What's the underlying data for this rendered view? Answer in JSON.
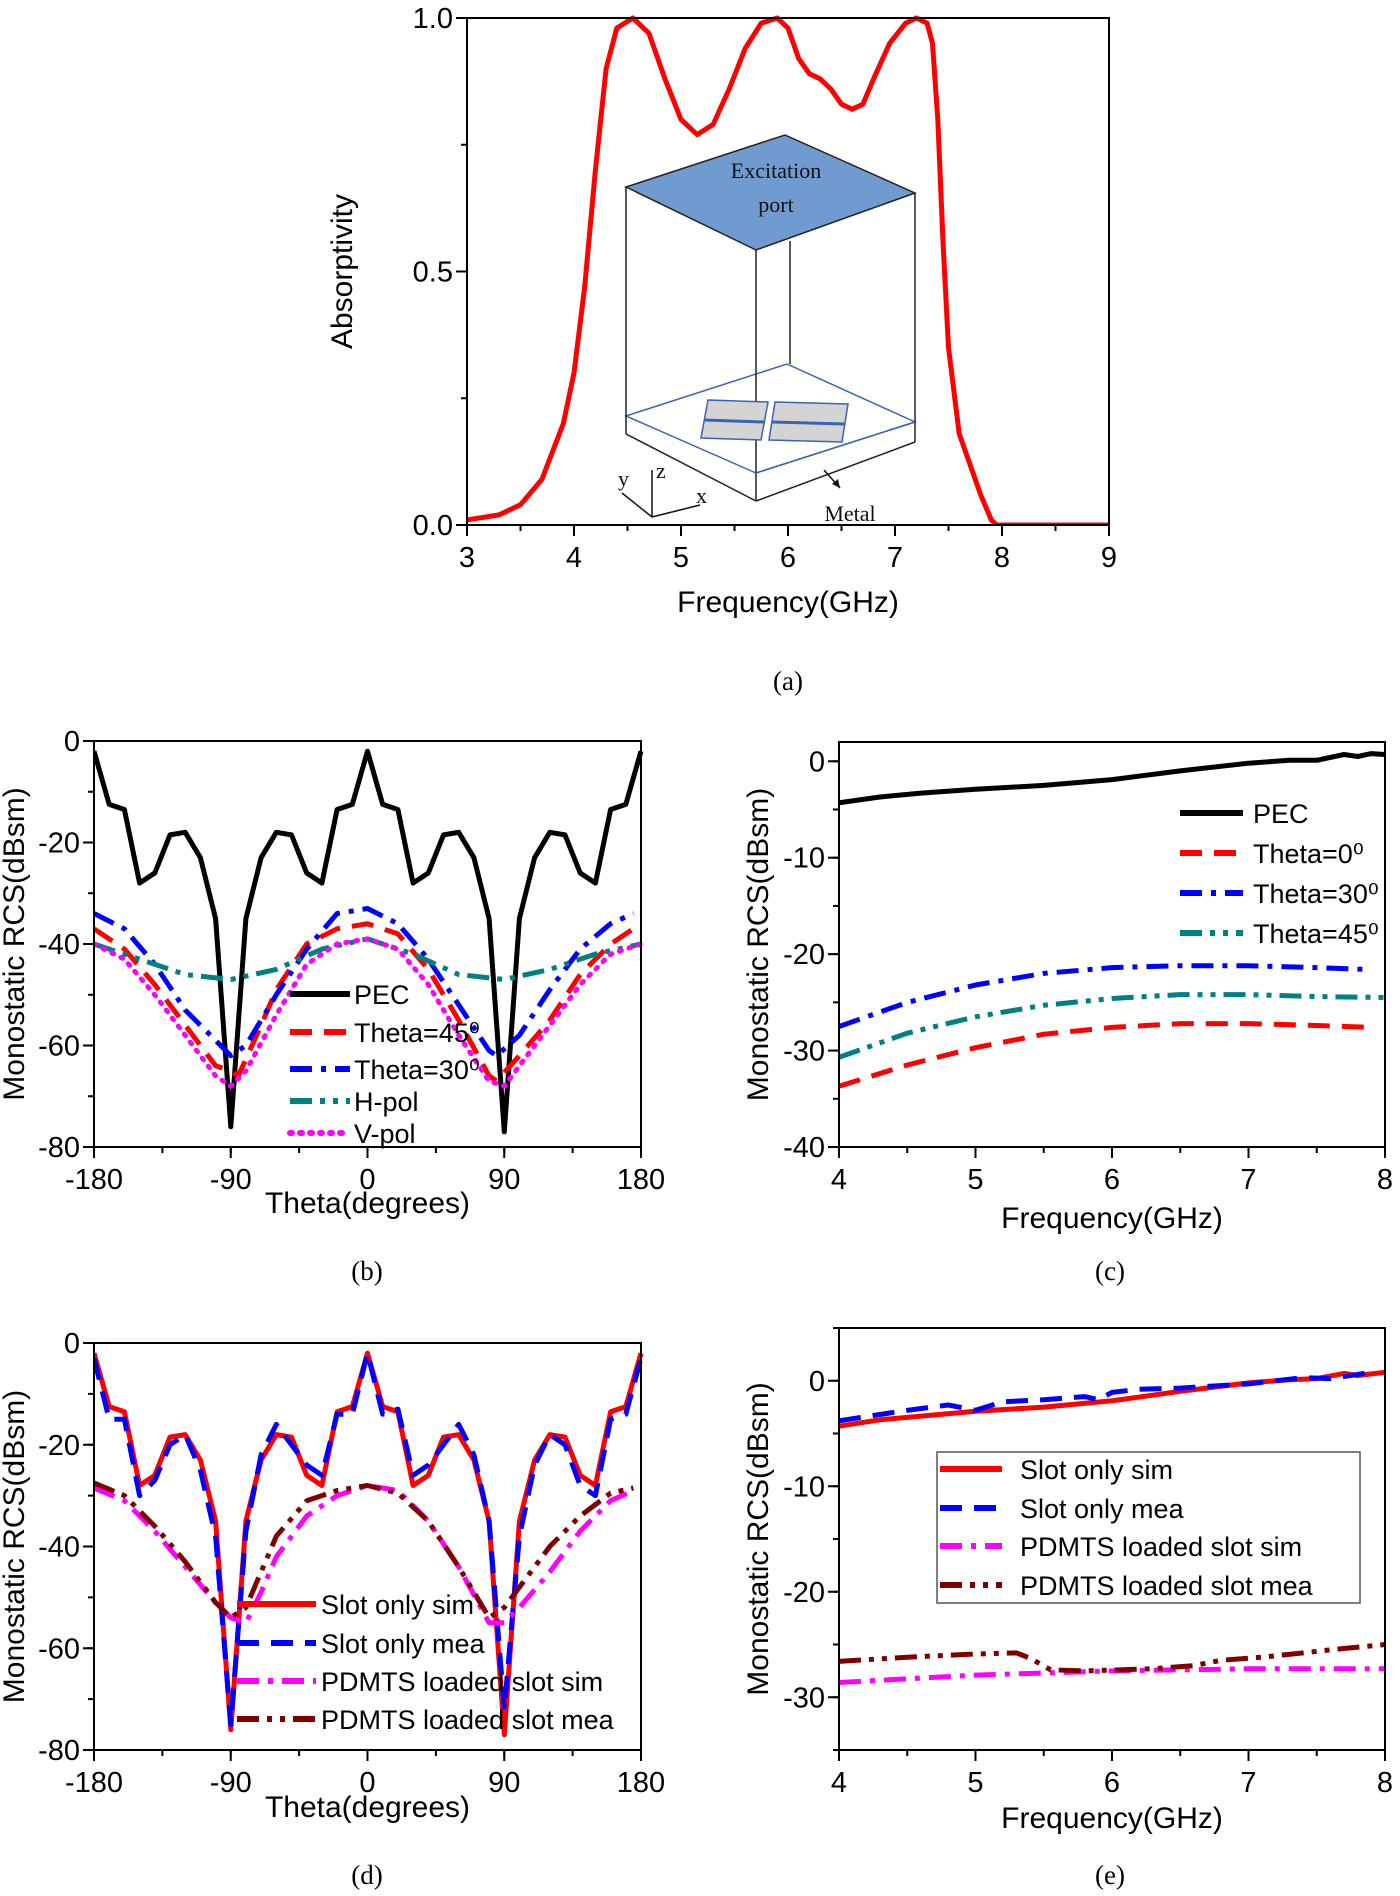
{
  "chart_data": [
    {
      "type": "line",
      "caption": "(a)",
      "xlabel": "Frequency(GHz)",
      "ylabel": "Absorptivity",
      "xlim": [
        3,
        9
      ],
      "ylim": [
        0,
        1
      ],
      "xticks": [
        "3",
        "4",
        "5",
        "6",
        "7",
        "8",
        "9"
      ],
      "yticks": [
        "0.0",
        "0.5",
        "1.0"
      ],
      "grid": false,
      "legend": "none",
      "inset": {
        "port_label_1": "Excitation",
        "port_label_2": "port",
        "metal_label": "Metal",
        "axis_x": "x",
        "axis_y": "y",
        "axis_z": "z"
      },
      "series": [
        {
          "color": "#ff0000",
          "style": "solid",
          "x": [
            3,
            3.3,
            3.5,
            3.7,
            3.9,
            4.0,
            4.1,
            4.2,
            4.3,
            4.4,
            4.55,
            4.7,
            4.85,
            5.0,
            5.15,
            5.3,
            5.45,
            5.6,
            5.75,
            5.9,
            6.0,
            6.1,
            6.2,
            6.3,
            6.4,
            6.5,
            6.6,
            6.7,
            6.8,
            6.95,
            7.1,
            7.2,
            7.3,
            7.35,
            7.4,
            7.45,
            7.5,
            7.6,
            7.7,
            7.8,
            7.9,
            7.95,
            9
          ],
          "y": [
            0.01,
            0.02,
            0.04,
            0.09,
            0.2,
            0.3,
            0.47,
            0.7,
            0.9,
            0.98,
            1.0,
            0.97,
            0.88,
            0.8,
            0.77,
            0.79,
            0.86,
            0.94,
            0.99,
            1.0,
            0.98,
            0.92,
            0.89,
            0.88,
            0.86,
            0.83,
            0.82,
            0.83,
            0.88,
            0.95,
            0.99,
            1.0,
            0.99,
            0.95,
            0.8,
            0.55,
            0.35,
            0.18,
            0.12,
            0.06,
            0.01,
            0.0,
            0.0
          ]
        }
      ]
    },
    {
      "type": "line",
      "caption": "(b)",
      "xlabel": "Theta(degrees)",
      "ylabel": "Monostatic RCS(dBsm)",
      "xlim": [
        -180,
        180
      ],
      "ylim": [
        -80,
        0
      ],
      "xticks": [
        "-180",
        "-90",
        "0",
        "90",
        "180"
      ],
      "yticks": [
        "-80",
        "-60",
        "-40",
        "-20",
        "0"
      ],
      "grid": false,
      "legend": "bottom-center",
      "series": [
        {
          "name": "PEC",
          "color": "#000000",
          "style": "solid",
          "x": [
            -180,
            -170,
            -160,
            -150,
            -140,
            -130,
            -120,
            -110,
            -100,
            -90,
            -80,
            -70,
            -60,
            -50,
            -40,
            -30,
            -20,
            -10,
            0,
            10,
            20,
            30,
            40,
            50,
            60,
            70,
            80,
            90,
            100,
            110,
            120,
            130,
            140,
            150,
            160,
            170,
            180
          ],
          "y": [
            -2,
            -12.5,
            -13.5,
            -28,
            -26,
            -18.5,
            -18,
            -23,
            -35,
            -76,
            -35,
            -23,
            -18,
            -18.5,
            -26,
            -28,
            -13.5,
            -12.5,
            -2,
            -12.5,
            -13.5,
            -28,
            -26,
            -18.5,
            -18,
            -23,
            -35,
            -77,
            -35,
            -23,
            -18,
            -18.5,
            -26,
            -28,
            -13.5,
            -12.5,
            -2
          ]
        },
        {
          "name": "Theta=45⁰",
          "color": "#ff0000",
          "style": "dash",
          "x": [
            -180,
            -160,
            -140,
            -120,
            -100,
            -90,
            -85,
            -70,
            -60,
            -40,
            -20,
            0,
            20,
            40,
            60,
            80,
            85,
            100,
            120,
            140,
            160,
            175
          ],
          "y": [
            -37,
            -41,
            -48,
            -56,
            -64,
            -65,
            -66,
            -56,
            -49,
            -40,
            -37,
            -36,
            -38,
            -45,
            -55,
            -66,
            -67,
            -62,
            -55,
            -46,
            -40,
            -37
          ]
        },
        {
          "name": "Theta=30⁰",
          "color": "#0000ff",
          "style": "dashdot",
          "x": [
            -180,
            -160,
            -140,
            -120,
            -100,
            -90,
            -80,
            -60,
            -40,
            -20,
            0,
            20,
            40,
            60,
            80,
            85,
            100,
            120,
            140,
            160,
            175
          ],
          "y": [
            -34,
            -37,
            -44,
            -53,
            -59,
            -62,
            -60,
            -50,
            -41,
            -34,
            -33,
            -36,
            -43,
            -52,
            -61,
            -62,
            -58,
            -49,
            -41,
            -36,
            -34
          ]
        },
        {
          "name": "H-pol",
          "color": "#008080",
          "style": "dashdotdot",
          "x": [
            -180,
            -150,
            -120,
            -90,
            -60,
            -30,
            0,
            30,
            60,
            90,
            120,
            150,
            180
          ],
          "y": [
            -40,
            -43,
            -46,
            -47,
            -45,
            -41,
            -39,
            -42,
            -46,
            -47,
            -45,
            -42,
            -40
          ]
        },
        {
          "name": "V-pol",
          "color": "#ff00ff",
          "style": "dot",
          "x": [
            -180,
            -160,
            -140,
            -120,
            -100,
            -90,
            -80,
            -60,
            -40,
            -20,
            0,
            20,
            40,
            60,
            80,
            90,
            100,
            120,
            140,
            160,
            180
          ],
          "y": [
            -40,
            -43,
            -50,
            -58,
            -66,
            -68,
            -65,
            -54,
            -44,
            -40,
            -39,
            -41,
            -48,
            -58,
            -67,
            -68,
            -64,
            -56,
            -48,
            -42,
            -40
          ]
        }
      ]
    },
    {
      "type": "line",
      "caption": "(c)",
      "xlabel": "Frequency(GHz)",
      "ylabel": "Monostatic RCS(dBsm)",
      "xlim": [
        4,
        8
      ],
      "ylim": [
        -40,
        2
      ],
      "xticks": [
        "4",
        "5",
        "6",
        "7",
        "8"
      ],
      "yticks": [
        "-40",
        "-30",
        "-20",
        "-10",
        "0"
      ],
      "grid": false,
      "legend": "top-right",
      "series": [
        {
          "name": "PEC",
          "color": "#000000",
          "style": "solid",
          "x": [
            4,
            4.3,
            4.6,
            5,
            5.5,
            6,
            6.5,
            7,
            7.3,
            7.5,
            7.7,
            7.8,
            7.9,
            8
          ],
          "y": [
            -4.3,
            -3.7,
            -3.3,
            -2.9,
            -2.5,
            -1.9,
            -1.0,
            -0.2,
            0.1,
            0.1,
            0.7,
            0.5,
            0.8,
            0.7
          ]
        },
        {
          "name": "Theta=0⁰",
          "color": "#ff0000",
          "style": "dash",
          "x": [
            4,
            4.5,
            5,
            5.5,
            6,
            6.5,
            7,
            7.5,
            7.9
          ],
          "y": [
            -33.7,
            -31.5,
            -29.7,
            -28.3,
            -27.6,
            -27.2,
            -27.2,
            -27.4,
            -27.6
          ]
        },
        {
          "name": "Theta=30⁰",
          "color": "#0000ff",
          "style": "dashdot",
          "x": [
            4,
            4.5,
            5,
            5.5,
            6,
            6.5,
            7,
            7.5,
            7.9
          ],
          "y": [
            -27.5,
            -25,
            -23.2,
            -22,
            -21.4,
            -21.2,
            -21.2,
            -21.4,
            -21.6
          ]
        },
        {
          "name": "Theta=45⁰",
          "color": "#008080",
          "style": "dashdotdot",
          "x": [
            4,
            4.5,
            5,
            5.5,
            6,
            6.5,
            7,
            7.5,
            8
          ],
          "y": [
            -30.7,
            -28.2,
            -26.5,
            -25.3,
            -24.6,
            -24.2,
            -24.2,
            -24.4,
            -24.5
          ]
        }
      ]
    },
    {
      "type": "line",
      "caption": "(d)",
      "xlabel": "Theta(degrees)",
      "ylabel": "Monostatic RCS(dBsm)",
      "xlim": [
        -180,
        180
      ],
      "ylim": [
        -80,
        0
      ],
      "xticks": [
        "-180",
        "-90",
        "0",
        "90",
        "180"
      ],
      "yticks": [
        "-80",
        "-60",
        "-40",
        "-20",
        "0"
      ],
      "grid": false,
      "legend": "bottom-right",
      "series": [
        {
          "name": "Slot only sim",
          "color": "#ff0000",
          "style": "solid",
          "x": [
            -180,
            -170,
            -160,
            -150,
            -140,
            -130,
            -120,
            -110,
            -100,
            -90,
            -80,
            -70,
            -60,
            -50,
            -40,
            -30,
            -20,
            -10,
            0,
            10,
            20,
            30,
            40,
            50,
            60,
            70,
            80,
            90,
            100,
            110,
            120,
            130,
            140,
            150,
            160,
            170,
            180
          ],
          "y": [
            -2,
            -12.5,
            -13.5,
            -28,
            -26,
            -18.5,
            -18,
            -23,
            -35,
            -76,
            -35,
            -23,
            -18,
            -18.5,
            -26,
            -28,
            -13.5,
            -12.5,
            -2,
            -12.5,
            -13.5,
            -28,
            -26,
            -18.5,
            -18,
            -23,
            -35,
            -77,
            -35,
            -23,
            -18,
            -18.5,
            -26,
            -28,
            -13.5,
            -12.5,
            -2
          ]
        },
        {
          "name": "Slot only mea",
          "color": "#0000ff",
          "style": "dash",
          "x": [
            -180,
            -170,
            -160,
            -150,
            -140,
            -130,
            -120,
            -110,
            -100,
            -90,
            -80,
            -70,
            -60,
            -50,
            -40,
            -30,
            -20,
            -10,
            0,
            10,
            20,
            30,
            40,
            50,
            60,
            70,
            80,
            90,
            100,
            110,
            120,
            130,
            140,
            150,
            160,
            170,
            180
          ],
          "y": [
            -3,
            -15,
            -15,
            -30,
            -27,
            -20,
            -18,
            -25,
            -38,
            -75,
            -37,
            -22,
            -16,
            -20,
            -24,
            -26,
            -14,
            -14,
            -2,
            -14,
            -13,
            -26,
            -24,
            -20,
            -16,
            -22,
            -35,
            -72,
            -38,
            -24,
            -18,
            -20,
            -28,
            -30,
            -15,
            -14,
            -3
          ]
        },
        {
          "name": "PDMTS loaded slot sim",
          "color": "#ff00ff",
          "style": "dashdot",
          "x": [
            -180,
            -160,
            -140,
            -120,
            -100,
            -90,
            -80,
            -70,
            -60,
            -40,
            -20,
            0,
            20,
            40,
            60,
            80,
            90,
            100,
            120,
            140,
            160,
            175
          ],
          "y": [
            -28.5,
            -31,
            -37,
            -44,
            -51,
            -54,
            -55,
            -49,
            -42,
            -34,
            -30,
            -28,
            -29,
            -35,
            -44,
            -55,
            -55,
            -52,
            -45,
            -37,
            -31,
            -29
          ]
        },
        {
          "name": "PDMTS loaded slot mea",
          "color": "#800000",
          "style": "dashdotdot",
          "x": [
            -180,
            -160,
            -140,
            -120,
            -100,
            -90,
            -80,
            -70,
            -60,
            -40,
            -20,
            0,
            20,
            40,
            60,
            80,
            90,
            100,
            120,
            140,
            160,
            175
          ],
          "y": [
            -27.5,
            -30,
            -36,
            -43,
            -51,
            -54,
            -52,
            -45,
            -38,
            -31,
            -29,
            -28,
            -29.5,
            -35,
            -44,
            -54,
            -52,
            -48,
            -40,
            -34,
            -29.5,
            -28.5
          ]
        }
      ]
    },
    {
      "type": "line",
      "caption": "(e)",
      "xlabel": "Frequency(GHz)",
      "ylabel": "Monostatic RCS(dBsm)",
      "xlim": [
        4,
        8
      ],
      "ylim": [
        -35,
        5
      ],
      "xticks": [
        "4",
        "5",
        "6",
        "7",
        "8"
      ],
      "yticks": [
        "-30",
        "-20",
        "-10",
        "0"
      ],
      "grid": false,
      "legend": "top-right",
      "series": [
        {
          "name": "Slot only sim",
          "color": "#ff0000",
          "style": "solid",
          "x": [
            4,
            4.3,
            5,
            5.5,
            6,
            6.5,
            7,
            7.3,
            7.5,
            7.7,
            7.8,
            8
          ],
          "y": [
            -4.3,
            -3.7,
            -2.9,
            -2.5,
            -1.9,
            -1.0,
            -0.2,
            0.1,
            0.2,
            0.7,
            0.5,
            0.8
          ]
        },
        {
          "name": "Slot only mea",
          "color": "#0000ff",
          "style": "dash",
          "x": [
            4,
            4.5,
            4.8,
            5,
            5.2,
            5.5,
            5.8,
            5.9,
            6,
            6.2,
            6.5,
            7,
            7.4,
            7.6,
            7.9
          ],
          "y": [
            -3.8,
            -2.8,
            -2.3,
            -2.8,
            -2.0,
            -1.8,
            -1.5,
            -1.8,
            -1.1,
            -0.8,
            -0.7,
            -0.3,
            0.3,
            0.2,
            0.8
          ]
        },
        {
          "name": "PDMTS loaded slot sim",
          "color": "#ff00ff",
          "style": "dashdot",
          "x": [
            4,
            5,
            6,
            7,
            8
          ],
          "y": [
            -28.6,
            -27.9,
            -27.5,
            -27.3,
            -27.3
          ]
        },
        {
          "name": "PDMTS loaded slot mea",
          "color": "#800000",
          "style": "dashdotdot",
          "x": [
            4,
            4.5,
            5,
            5.3,
            5.4,
            5.55,
            5.8,
            6.3,
            6.6,
            6.8,
            7.1,
            7.4,
            7.6,
            8
          ],
          "y": [
            -26.6,
            -26.2,
            -25.9,
            -25.8,
            -26.3,
            -27.4,
            -27.5,
            -27.3,
            -27.0,
            -26.5,
            -26.2,
            -25.8,
            -25.5,
            -25.0
          ]
        }
      ]
    }
  ]
}
